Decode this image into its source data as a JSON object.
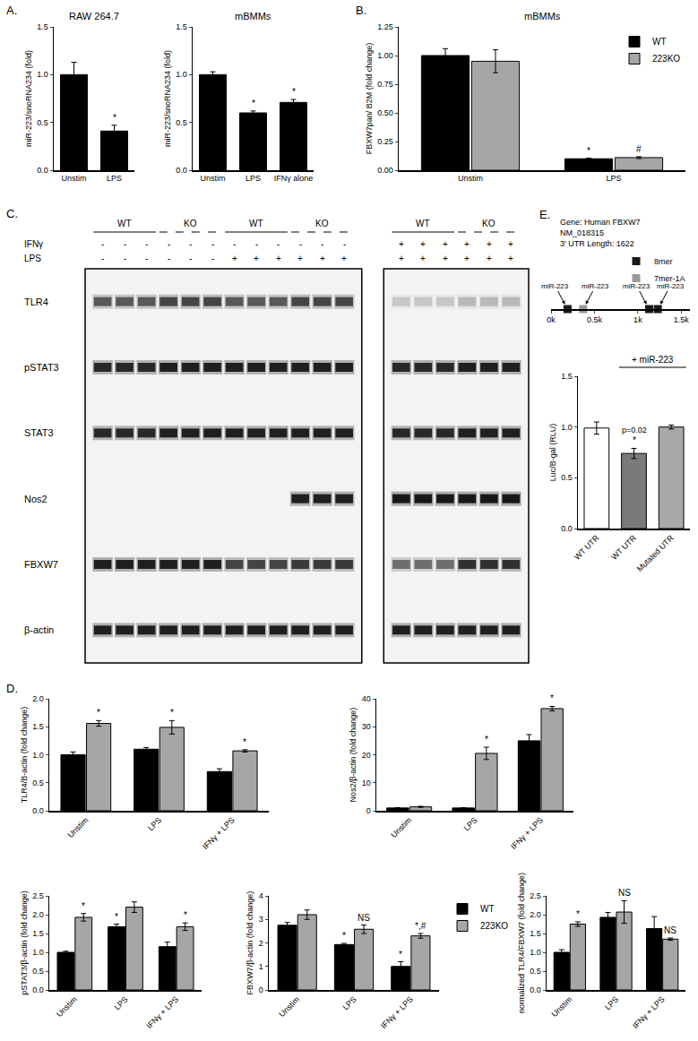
{
  "panel_labels": [
    "A.",
    "B.",
    "C.",
    "D.",
    "E."
  ],
  "chart_data": [
    {
      "type": "bar",
      "title": "RAW 264.7",
      "y_label": "miR-223/snoRNA234 (fold)",
      "categories": [
        "Unstim",
        "LPS"
      ],
      "values": [
        1.0,
        0.41
      ],
      "errors": [
        0.13,
        0.06
      ],
      "significance": [
        null,
        "*"
      ],
      "color": "#000000",
      "ylim": [
        0,
        1.5
      ],
      "yticks": [
        {
          "value": 0,
          "label": "0.0"
        },
        {
          "value": 0.5,
          "label": "0.5"
        },
        {
          "value": 1,
          "label": "1.0"
        },
        {
          "value": 1.5,
          "label": "1.5"
        }
      ],
      "grid": false
    },
    {
      "type": "bar",
      "title": "mBMMs",
      "y_label": "miR-223/snoRNA234 (fold)",
      "categories": [
        "Unstim",
        "LPS",
        "IFNγ alone"
      ],
      "values": [
        1.0,
        0.6,
        0.71
      ],
      "errors": [
        0.03,
        0.02,
        0.03
      ],
      "significance": [
        null,
        "*",
        "*"
      ],
      "color": "#000000",
      "ylim": [
        0,
        1.5
      ],
      "yticks": [
        {
          "value": 0,
          "label": "0.0"
        },
        {
          "value": 0.5,
          "label": "0.5"
        },
        {
          "value": 1,
          "label": "1.0"
        },
        {
          "value": 1.5,
          "label": "1.5"
        }
      ],
      "grid": false
    },
    {
      "type": "bar",
      "title": "mBMMs",
      "y_label": "FBXW7pan/ B2M (fold change)",
      "categories": [
        "Unstim",
        "LPS"
      ],
      "series": [
        {
          "name": "WT",
          "color": "#000000",
          "values": [
            1.0,
            0.1
          ],
          "errors": [
            0.06,
            0.005
          ],
          "significance": [
            null,
            "*"
          ]
        },
        {
          "name": "223KO",
          "color": "#a6a6a6",
          "values": [
            0.95,
            0.11
          ],
          "errors": [
            0.1,
            0.008
          ],
          "significance": [
            null,
            "#"
          ]
        }
      ],
      "legend": "top right",
      "ylim": [
        0,
        1.25
      ],
      "yticks": [
        {
          "value": 0,
          "label": "0.00"
        },
        {
          "value": 0.25,
          "label": "0.25"
        },
        {
          "value": 0.5,
          "label": "0.50"
        },
        {
          "value": 0.75,
          "label": "0.75"
        },
        {
          "value": 1,
          "label": "1.00"
        },
        {
          "value": 1.25,
          "label": "1.25"
        }
      ],
      "grid": false
    },
    {
      "type": "scatter",
      "title_lines": [
        "Gene: Human FBXW7",
        "NM_018315",
        "3' UTR Length: 1622"
      ],
      "series": [
        {
          "name": "8mer",
          "color": "#1a1a1a",
          "marker": "square",
          "x": [
            190,
            1130,
            1230
          ],
          "labels": [
            "miR-223",
            "miR-223",
            "miR-223"
          ]
        },
        {
          "name": "7mer-1A",
          "color": "#9a9a9a",
          "marker": "square",
          "x": [
            370
          ],
          "labels": [
            "miR-223"
          ]
        }
      ],
      "legend": "top right",
      "tick_labels": "x",
      "xlim": [
        0,
        1600
      ],
      "xticks": [
        {
          "value": 0,
          "label": "0k"
        },
        {
          "value": 500,
          "label": "0.5k"
        },
        {
          "value": 1000,
          "label": "1k"
        },
        {
          "value": 1500,
          "label": "1.5k"
        }
      ]
    },
    {
      "type": "bar",
      "y_label": "Luc/B-gal (RLU)",
      "categories": [
        "WT UTR",
        "WT UTR",
        "Mutated UTR"
      ],
      "values": [
        0.99,
        0.74,
        1.0
      ],
      "errors": [
        0.06,
        0.05,
        0.02
      ],
      "significance": [
        null,
        "*",
        null
      ],
      "notes": [
        null,
        "p=0.02",
        null
      ],
      "colors": [
        "#ffffff",
        "#7a7a7a",
        "#a8a8a8"
      ],
      "bracket": {
        "text": "+ miR-223",
        "from": 1,
        "to": 2
      },
      "ylim": [
        0,
        1.5
      ],
      "yticks": [
        {
          "value": 0,
          "label": "0.0"
        },
        {
          "value": 0.5,
          "label": "0.5"
        },
        {
          "value": 1,
          "label": "1.0"
        },
        {
          "value": 1.5,
          "label": "1.5"
        }
      ],
      "grid": false
    },
    {
      "type": "bar",
      "y_label": "TLR4/B-actin (fold change)",
      "categories": [
        "Unstim",
        "LPS",
        "IFNγ + LPS"
      ],
      "series": [
        {
          "name": "WT",
          "color": "#000000",
          "values": [
            1.0,
            1.1,
            0.7
          ],
          "errors": [
            0.05,
            0.03,
            0.05
          ],
          "significance": [
            null,
            null,
            null
          ]
        },
        {
          "name": "223KO",
          "color": "#a6a6a6",
          "values": [
            1.56,
            1.49,
            1.07
          ],
          "errors": [
            0.05,
            0.12,
            0.02
          ],
          "significance": [
            "*",
            "*",
            "*"
          ]
        }
      ],
      "ylim": [
        0,
        2
      ],
      "yticks": [
        {
          "value": 0,
          "label": "0.0"
        },
        {
          "value": 0.5,
          "label": "0.5"
        },
        {
          "value": 1,
          "label": "1.0"
        },
        {
          "value": 1.5,
          "label": "1.5"
        },
        {
          "value": 2,
          "label": "2.0"
        }
      ],
      "grid": false
    },
    {
      "type": "bar",
      "y_label": "Nos2/β-actin (fold change)",
      "categories": [
        "Unstim",
        "LPS",
        "IFNγ + LPS"
      ],
      "series": [
        {
          "name": "WT",
          "color": "#000000",
          "values": [
            1.0,
            1.0,
            25
          ],
          "errors": [
            0.1,
            0.1,
            2.2
          ],
          "significance": [
            null,
            null,
            null
          ]
        },
        {
          "name": "223KO",
          "color": "#a6a6a6",
          "values": [
            1.4,
            20.5,
            36.5
          ],
          "errors": [
            0.2,
            2.2,
            0.8
          ],
          "significance": [
            null,
            "*",
            "*"
          ]
        }
      ],
      "ylim": [
        0,
        40
      ],
      "yticks": [
        0,
        10,
        20,
        30,
        40
      ],
      "grid": false
    },
    {
      "type": "bar",
      "y_label": "pSTAT3/β-actin (fold change)",
      "categories": [
        "Unstim",
        "LPS",
        "IFNγ + LPS"
      ],
      "series": [
        {
          "name": "WT",
          "color": "#000000",
          "values": [
            1.0,
            1.68,
            1.15
          ],
          "errors": [
            0.03,
            0.07,
            0.12
          ],
          "significance": [
            null,
            "*",
            null
          ]
        },
        {
          "name": "223KO",
          "color": "#a6a6a6",
          "values": [
            1.93,
            2.2,
            1.68
          ],
          "errors": [
            0.1,
            0.14,
            0.1
          ],
          "significance": [
            "*",
            null,
            "*"
          ]
        }
      ],
      "ylim": [
        0,
        2.5
      ],
      "yticks": [
        {
          "value": 0,
          "label": "0.0"
        },
        {
          "value": 0.5,
          "label": "0.5"
        },
        {
          "value": 1,
          "label": "1.0"
        },
        {
          "value": 1.5,
          "label": "1.5"
        },
        {
          "value": 2,
          "label": "2.0"
        },
        {
          "value": 2.5,
          "label": "2.5"
        }
      ],
      "grid": false
    },
    {
      "type": "bar",
      "y_label": "FBXW7/β-actin (fold change)",
      "categories": [
        "Unstim",
        "LPS",
        "IFNγ + LPS"
      ],
      "series": [
        {
          "name": "WT",
          "color": "#000000",
          "values": [
            2.75,
            1.93,
            1.0
          ],
          "errors": [
            0.12,
            0.05,
            0.2
          ],
          "significance": [
            null,
            "*",
            "*"
          ]
        },
        {
          "name": "223KO",
          "color": "#a6a6a6",
          "values": [
            3.2,
            2.58,
            2.3
          ],
          "errors": [
            0.2,
            0.18,
            0.1
          ],
          "significance": [
            null,
            "NS",
            "*,#"
          ]
        }
      ],
      "legend": "right",
      "ylim": [
        0,
        4
      ],
      "yticks": [
        0,
        1,
        2,
        3,
        4
      ],
      "grid": false
    },
    {
      "type": "bar",
      "y_label": "normalized TLR4/FBXW7 (fold change)",
      "categories": [
        "Unstim",
        "LPS",
        "IFNγ + LPS"
      ],
      "series": [
        {
          "name": "WT",
          "color": "#000000",
          "values": [
            1.0,
            1.93,
            1.63
          ],
          "errors": [
            0.07,
            0.13,
            0.32
          ],
          "significance": [
            null,
            null,
            null
          ]
        },
        {
          "name": "223KO",
          "color": "#a6a6a6",
          "values": [
            1.75,
            2.07,
            1.35
          ],
          "errors": [
            0.06,
            0.3,
            0.03
          ],
          "significance": [
            "*",
            "NS",
            "NS"
          ]
        }
      ],
      "ylim": [
        0,
        2.5
      ],
      "yticks": [
        {
          "value": 0,
          "label": "0.0"
        },
        {
          "value": 0.5,
          "label": "0.5"
        },
        {
          "value": 1,
          "label": "1.0"
        },
        {
          "value": 1.5,
          "label": "1.5"
        },
        {
          "value": 2,
          "label": "2.0"
        },
        {
          "value": 2.5,
          "label": "2.5"
        }
      ],
      "grid": false
    }
  ],
  "blot": {
    "sections": [
      {
        "groups": [
          {
            "label": "WT",
            "lanes": 3
          },
          {
            "label": "KO",
            "lanes": 3
          },
          {
            "label": "WT",
            "lanes": 3
          },
          {
            "label": "KO",
            "lanes": 3
          }
        ]
      },
      {
        "groups": [
          {
            "label": "WT",
            "lanes": 3
          },
          {
            "label": "KO",
            "lanes": 3
          }
        ]
      }
    ],
    "treatments": [
      {
        "name": "IFNγ",
        "signs": [
          "-",
          "-",
          "-",
          "-",
          "-",
          "-",
          "-",
          "-",
          "-",
          "-",
          "-",
          "-",
          "+",
          "+",
          "+",
          "+",
          "+",
          "+"
        ]
      },
      {
        "name": "LPS",
        "signs": [
          "-",
          "-",
          "-",
          "-",
          "-",
          "-",
          "+",
          "+",
          "+",
          "+",
          "+",
          "+",
          "+",
          "+",
          "+",
          "+",
          "+",
          "+"
        ]
      }
    ],
    "bands": [
      {
        "name": "TLR4",
        "intensity": [
          0.6,
          0.6,
          0.6,
          0.7,
          0.7,
          0.7,
          0.6,
          0.6,
          0.6,
          0.7,
          0.7,
          0.7,
          0.15,
          0.15,
          0.15,
          0.2,
          0.2,
          0.2
        ]
      },
      {
        "name": "pSTAT3",
        "intensity": [
          0.85,
          0.85,
          0.85,
          0.9,
          0.9,
          0.9,
          0.9,
          0.9,
          0.9,
          0.9,
          0.9,
          0.9,
          0.85,
          0.85,
          0.85,
          0.9,
          0.9,
          0.9
        ]
      },
      {
        "name": "STAT3",
        "intensity": [
          0.85,
          0.85,
          0.85,
          0.9,
          0.9,
          0.9,
          0.9,
          0.9,
          0.9,
          0.9,
          0.9,
          0.9,
          0.85,
          0.85,
          0.85,
          0.9,
          0.9,
          0.9
        ]
      },
      {
        "name": "Nos2",
        "intensity": [
          0,
          0,
          0,
          0,
          0,
          0,
          0,
          0,
          0,
          0.9,
          0.9,
          0.9,
          0.95,
          0.95,
          0.95,
          0.95,
          0.95,
          0.95
        ]
      },
      {
        "name": "FBXW7",
        "intensity": [
          0.9,
          0.9,
          0.9,
          0.9,
          0.9,
          0.9,
          0.7,
          0.7,
          0.7,
          0.75,
          0.75,
          0.75,
          0.5,
          0.5,
          0.5,
          0.8,
          0.8,
          0.8
        ]
      },
      {
        "name": "β-actin",
        "intensity": [
          0.9,
          0.9,
          0.9,
          0.9,
          0.9,
          0.9,
          0.9,
          0.9,
          0.9,
          0.9,
          0.9,
          0.9,
          0.9,
          0.9,
          0.9,
          0.9,
          0.9,
          0.9
        ]
      }
    ]
  }
}
